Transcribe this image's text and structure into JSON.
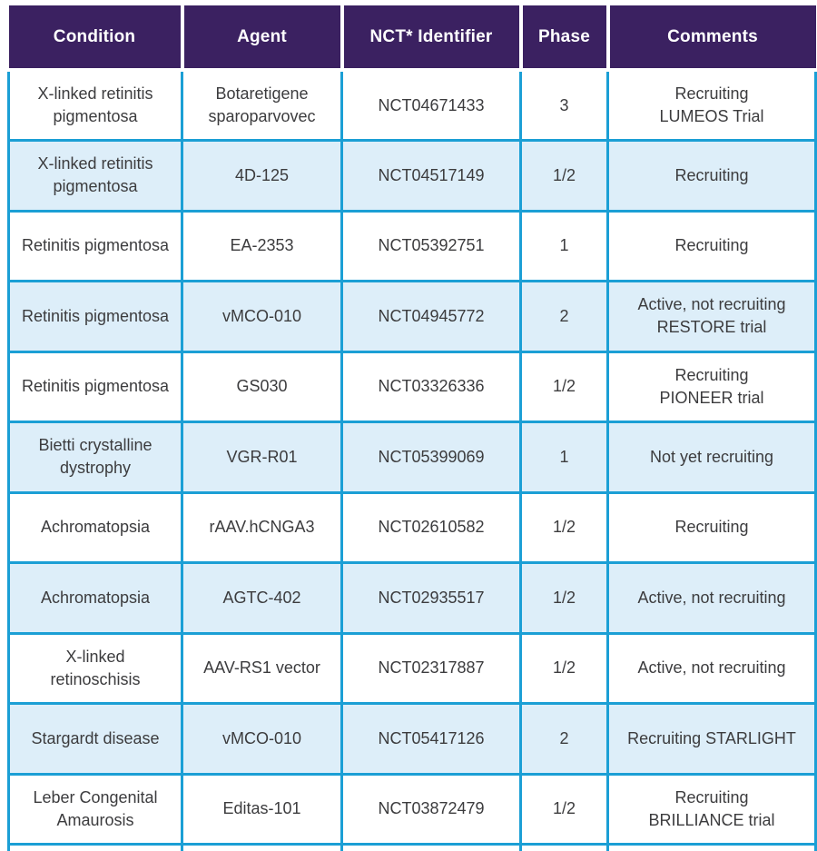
{
  "table": {
    "columns": [
      "Condition",
      "Agent",
      "NCT* Identifier",
      "Phase",
      "Comments"
    ],
    "rows": [
      {
        "condition": "X-linked retinitis\npigmentosa",
        "agent": "Botaretigene\nsparoparvovec",
        "nct": "NCT04671433",
        "phase": "3",
        "comments": "Recruiting\nLUMEOS Trial"
      },
      {
        "condition": "X-linked retinitis\npigmentosa",
        "agent": "4D-125",
        "nct": "NCT04517149",
        "phase": "1/2",
        "comments": "Recruiting"
      },
      {
        "condition": "Retinitis pigmentosa",
        "agent": "EA-2353",
        "nct": "NCT05392751",
        "phase": "1",
        "comments": "Recruiting"
      },
      {
        "condition": "Retinitis pigmentosa",
        "agent": "vMCO-010",
        "nct": "NCT04945772",
        "phase": "2",
        "comments": "Active, not recruiting\nRESTORE trial"
      },
      {
        "condition": "Retinitis pigmentosa",
        "agent": "GS030",
        "nct": "NCT03326336",
        "phase": "1/2",
        "comments": "Recruiting\nPIONEER trial"
      },
      {
        "condition": "Bietti crystalline\ndystrophy",
        "agent": "VGR-R01",
        "nct": "NCT05399069",
        "phase": "1",
        "comments": "Not yet recruiting"
      },
      {
        "condition": "Achromatopsia",
        "agent": "rAAV.hCNGA3",
        "nct": "NCT02610582",
        "phase": "1/2",
        "comments": "Recruiting"
      },
      {
        "condition": "Achromatopsia",
        "agent": "AGTC-402",
        "nct": "NCT02935517",
        "phase": "1/2",
        "comments": "Active, not recruiting"
      },
      {
        "condition": "X-linked\nretinoschisis",
        "agent": "AAV-RS1 vector",
        "nct": "NCT02317887",
        "phase": "1/2",
        "comments": "Active, not recruiting"
      },
      {
        "condition": "Stargardt disease",
        "agent": "vMCO-010",
        "nct": "NCT05417126",
        "phase": "2",
        "comments": "Recruiting STARLIGHT"
      },
      {
        "condition": "Leber Congenital\nAmaurosis",
        "agent": "Editas-101",
        "nct": "NCT03872479",
        "phase": "1/2",
        "comments": "Recruiting\nBRILLIANCE trial"
      }
    ]
  },
  "colors": {
    "header_bg": "#3b2161",
    "header_text": "#ffffff",
    "row_bg": "#ffffff",
    "row_alt_bg": "#ddeef9",
    "border": "#1b9fd5",
    "body_text": "#3c3c3e"
  }
}
